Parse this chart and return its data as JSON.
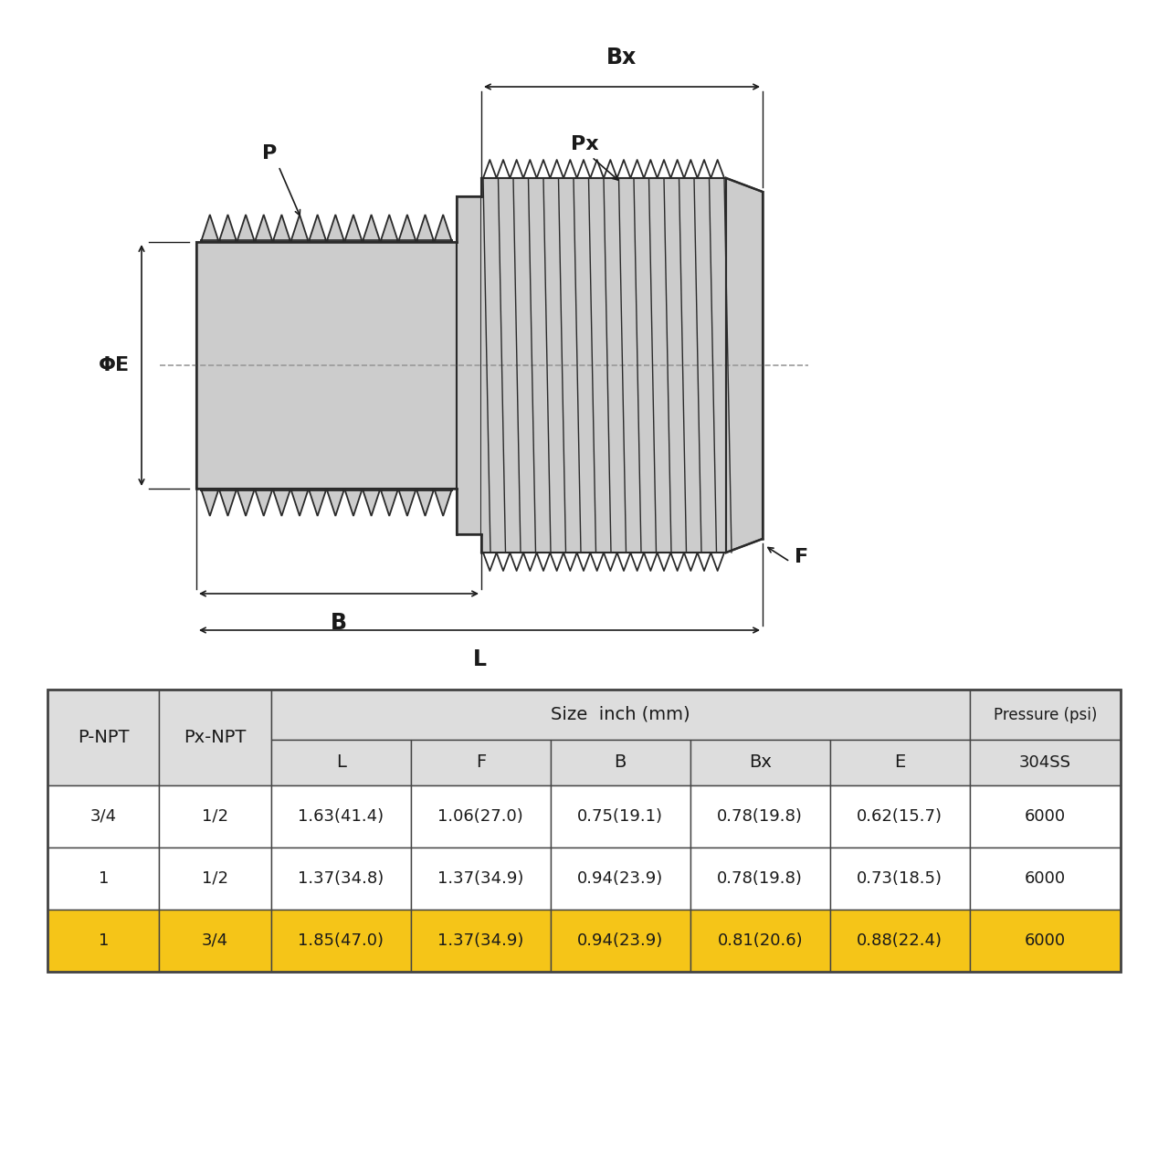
{
  "bg_color": "#ffffff",
  "part_color": "#cccccc",
  "part_edge_color": "#2a2a2a",
  "dim_color": "#1a1a1a",
  "table_header_bg": "#dddddd",
  "table_highlight_bg": "#f5c518",
  "table_border_color": "#444444",
  "table_data": {
    "rows": [
      [
        "3/4",
        "1/2",
        "1.63(41.4)",
        "1.06(27.0)",
        "0.75(19.1)",
        "0.78(19.8)",
        "0.62(15.7)",
        "6000"
      ],
      [
        "1",
        "1/2",
        "1.37(34.8)",
        "1.37(34.9)",
        "0.94(23.9)",
        "0.78(19.8)",
        "0.73(18.5)",
        "6000"
      ],
      [
        "1",
        "3/4",
        "1.85(47.0)",
        "1.37(34.9)",
        "0.94(23.9)",
        "0.81(20.6)",
        "0.88(22.4)",
        "6000"
      ]
    ],
    "highlight_row": 2
  }
}
